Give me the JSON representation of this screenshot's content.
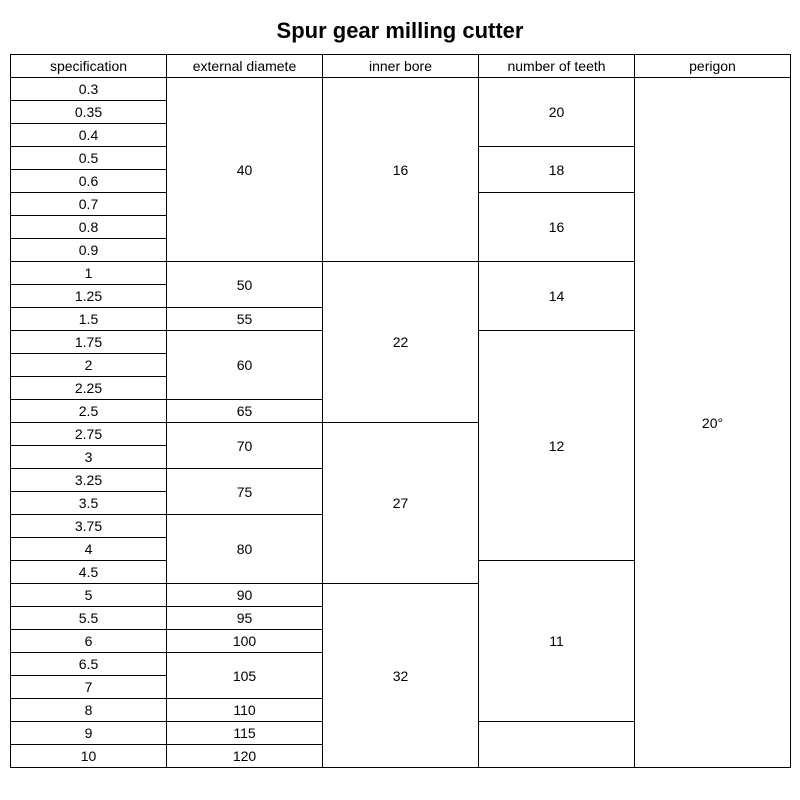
{
  "title": "Spur gear milling cutter",
  "headers": {
    "spec": "specification",
    "ext": "external diamete",
    "bore": "inner bore",
    "teeth": "number of teeth",
    "perigon": "perigon"
  },
  "spec_rows": [
    "0.3",
    "0.35",
    "0.4",
    "0.5",
    "0.6",
    "0.7",
    "0.8",
    "0.9",
    "1",
    "1.25",
    "1.5",
    "1.75",
    "2",
    "2.25",
    "2.5",
    "2.75",
    "3",
    "3.25",
    "3.5",
    "3.75",
    "4",
    "4.5",
    "5",
    "5.5",
    "6",
    "6.5",
    "7",
    "8",
    "9",
    "10"
  ],
  "ext_groups": [
    {
      "value": "40",
      "span": 8
    },
    {
      "value": "50",
      "span": 2
    },
    {
      "value": "55",
      "span": 1
    },
    {
      "value": "60",
      "span": 3
    },
    {
      "value": "65",
      "span": 1
    },
    {
      "value": "70",
      "span": 2
    },
    {
      "value": "75",
      "span": 2
    },
    {
      "value": "80",
      "span": 3
    },
    {
      "value": "90",
      "span": 1
    },
    {
      "value": "95",
      "span": 1
    },
    {
      "value": "100",
      "span": 1
    },
    {
      "value": "105",
      "span": 2
    },
    {
      "value": "110",
      "span": 1
    },
    {
      "value": "115",
      "span": 1
    },
    {
      "value": "120",
      "span": 1
    }
  ],
  "bore_groups": [
    {
      "value": "16",
      "span": 8
    },
    {
      "value": "22",
      "span": 7
    },
    {
      "value": "27",
      "span": 7
    },
    {
      "value": "32",
      "span": 8
    }
  ],
  "teeth_groups": [
    {
      "value": "20",
      "span": 3
    },
    {
      "value": "18",
      "span": 2
    },
    {
      "value": "16",
      "span": 3
    },
    {
      "value": "14",
      "span": 3
    },
    {
      "value": "12",
      "span": 10
    },
    {
      "value": "11",
      "span": 7
    },
    {
      "value": "",
      "span": 2
    }
  ],
  "perigon": {
    "value": "20°",
    "span": 30
  }
}
